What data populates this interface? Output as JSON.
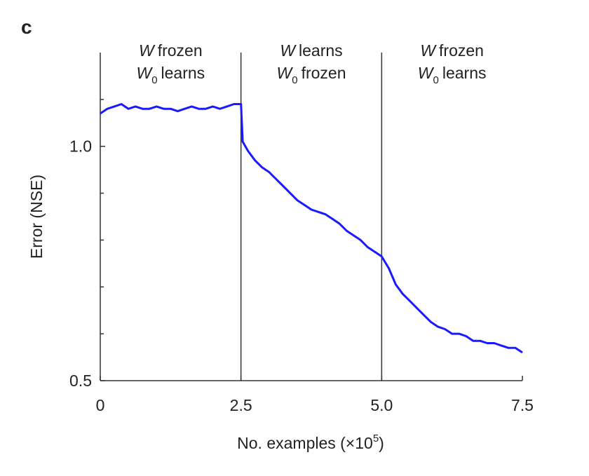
{
  "chart_data": {
    "type": "line",
    "panel_label": "c",
    "y_label": "Error (NSE)",
    "x_label": {
      "text": "No. examples (×10",
      "superscript": "5",
      "suffix": ")"
    },
    "xlim": [
      0,
      7.5
    ],
    "ylim": [
      0.5,
      1.2
    ],
    "xticks": [
      0,
      2.5,
      {
        "value": 5,
        "label": "5.0"
      },
      7.5
    ],
    "yticks": [
      {
        "value": 0.5,
        "label": "0.5"
      },
      {
        "value": 1,
        "label": "1.0"
      }
    ],
    "yticks_minor": [
      0.6,
      0.7,
      0.8,
      0.9,
      1.1
    ],
    "color": "#1a1aff",
    "regions": [
      {
        "start": 0,
        "end": 2.5,
        "line1": {
          "symbol": "W",
          "text": "frozen"
        },
        "line2": {
          "symbol": "W",
          "subscript": "0",
          "text": "learns"
        }
      },
      {
        "start": 2.5,
        "end": 5,
        "line1": {
          "symbol": "W",
          "text": "learns"
        },
        "line2": {
          "symbol": "W",
          "subscript": "0",
          "text": "frozen"
        }
      },
      {
        "start": 5,
        "end": 7.5,
        "line1": {
          "symbol": "W",
          "text": "frozen"
        },
        "line2": {
          "symbol": "W",
          "subscript": "0",
          "text": "learns"
        }
      }
    ],
    "x": [
      0,
      0.125,
      0.25,
      0.375,
      0.5,
      0.625,
      0.75,
      0.875,
      1,
      1.125,
      1.25,
      1.375,
      1.5,
      1.625,
      1.75,
      1.875,
      2,
      2.125,
      2.25,
      2.375,
      2.5,
      2.53,
      2.625,
      2.75,
      2.875,
      3,
      3.125,
      3.25,
      3.375,
      3.5,
      3.625,
      3.75,
      3.875,
      4,
      4.125,
      4.25,
      4.375,
      4.5,
      4.625,
      4.75,
      4.875,
      5,
      5.125,
      5.25,
      5.375,
      5.5,
      5.625,
      5.75,
      5.875,
      6,
      6.125,
      6.25,
      6.375,
      6.5,
      6.625,
      6.75,
      6.875,
      7,
      7.125,
      7.25,
      7.375,
      7.5
    ],
    "values": [
      1.07,
      1.08,
      1.085,
      1.09,
      1.08,
      1.085,
      1.08,
      1.08,
      1.085,
      1.08,
      1.08,
      1.075,
      1.08,
      1.085,
      1.08,
      1.08,
      1.085,
      1.08,
      1.085,
      1.09,
      1.09,
      1.01,
      0.99,
      0.97,
      0.955,
      0.945,
      0.93,
      0.915,
      0.9,
      0.885,
      0.875,
      0.865,
      0.86,
      0.855,
      0.845,
      0.835,
      0.82,
      0.81,
      0.8,
      0.785,
      0.775,
      0.765,
      0.74,
      0.705,
      0.685,
      0.67,
      0.655,
      0.64,
      0.625,
      0.615,
      0.61,
      0.6,
      0.6,
      0.595,
      0.585,
      0.585,
      0.58,
      0.58,
      0.575,
      0.57,
      0.57,
      0.56
    ]
  }
}
